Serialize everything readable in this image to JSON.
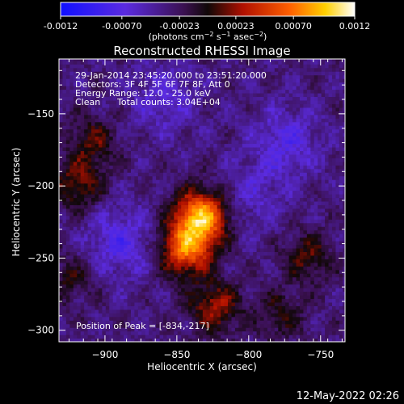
{
  "colorbar": {
    "ticks": [
      {
        "label": "-0.0012",
        "value": -0.0012
      },
      {
        "label": "-0.00070",
        "value": -0.0007
      },
      {
        "label": "-0.00023",
        "value": -0.00023
      },
      {
        "label": "0.00023",
        "value": 0.00023
      },
      {
        "label": "0.00070",
        "value": 0.0007
      },
      {
        "label": "0.0012",
        "value": 0.0012
      }
    ],
    "range": [
      -0.0012,
      0.0012
    ],
    "units_main": "(photons cm",
    "units_exp1": "−2",
    "units_mid": " s",
    "units_exp2": "−1",
    "units_end": " asec",
    "units_exp3": "−2",
    "units_close": ")"
  },
  "chart_data": {
    "type": "heatmap",
    "title": "Reconstructed RHESSI Image",
    "xlabel": "Heliocentric X (arcsec)",
    "ylabel": "Heliocentric Y (arcsec)",
    "xlim": [
      -932,
      -733
    ],
    "ylim": [
      -308,
      -112
    ],
    "x_ticks": [
      {
        "label": "−900",
        "value": -900
      },
      {
        "label": "−850",
        "value": -850
      },
      {
        "label": "−800",
        "value": -800
      },
      {
        "label": "−750",
        "value": -750
      }
    ],
    "y_ticks": [
      {
        "label": "−150",
        "value": -150
      },
      {
        "label": "−200",
        "value": -200
      },
      {
        "label": "−250",
        "value": -250
      },
      {
        "label": "−300",
        "value": -300
      }
    ],
    "colormap": "blue-purple-red-yellow-white",
    "peak": {
      "x": -834,
      "y": -217
    },
    "sources": [
      {
        "x": -834,
        "y": -222,
        "amp": 0.0012
      },
      {
        "x": -845,
        "y": -245,
        "amp": 0.00095
      },
      {
        "x": -825,
        "y": -285,
        "amp": 0.0006
      },
      {
        "x": -920,
        "y": -200,
        "amp": 0.0005
      },
      {
        "x": -910,
        "y": -170,
        "amp": 0.0004
      },
      {
        "x": -760,
        "y": -250,
        "amp": 0.0004
      },
      {
        "x": -780,
        "y": -290,
        "amp": 0.0003
      },
      {
        "x": -925,
        "y": -265,
        "amp": 0.0003
      }
    ],
    "negatives": [
      {
        "x": -890,
        "y": -240,
        "amp": -0.0004
      },
      {
        "x": -775,
        "y": -170,
        "amp": -0.00035
      },
      {
        "x": -860,
        "y": -140,
        "amp": -0.0003
      },
      {
        "x": -800,
        "y": -210,
        "amp": -0.00025
      }
    ]
  },
  "annotations": {
    "time_range": "29-Jan-2014 23:45:20.000 to 23:51:20.000",
    "detectors": "Detectors: 3F 4F 5F 6F 7F 8F, Att 0",
    "energy": "Energy Range: 12.0 - 25.0 keV",
    "method": "Clean",
    "counts": "Total counts: 3.04E+04",
    "peak_label": "Position of Peak = [-834,-217]"
  },
  "footer": {
    "date": "12-May-2022 02:26"
  }
}
